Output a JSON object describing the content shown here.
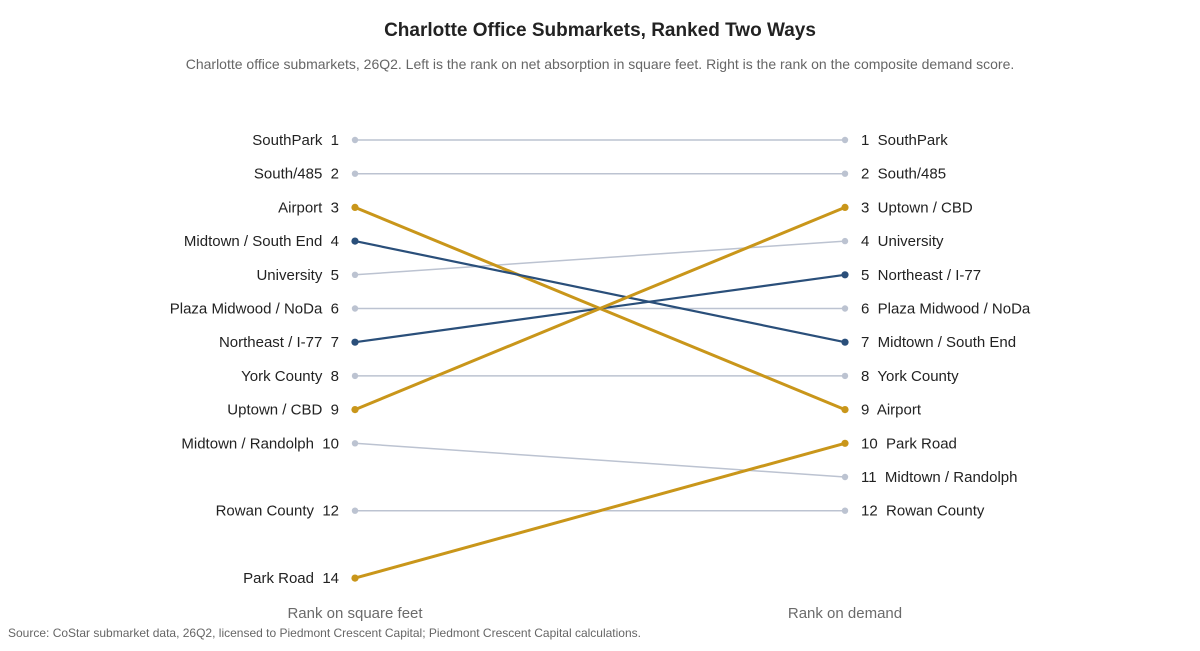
{
  "title": "Charlotte Office Submarkets, Ranked Two Ways",
  "subtitle": "Charlotte office submarkets, 26Q2. Left is the rank on net absorption in square feet. Right is the rank on the composite demand score.",
  "source": "Source: CoStar submarket data, 26Q2, licensed to Piedmont Crescent Capital; Piedmont Crescent Capital calculations.",
  "chart_data": {
    "type": "slope",
    "left_axis_label": "Rank on square feet",
    "right_axis_label": "Rank on demand",
    "rank_range": [
      1,
      14
    ],
    "colors": {
      "gold": "#c9961a",
      "navy": "#2a4f7a",
      "gray": "#bcc3d1"
    },
    "series": [
      {
        "name": "SouthPark",
        "left_rank": 1,
        "right_rank": 1,
        "highlight": "gray"
      },
      {
        "name": "South/485",
        "left_rank": 2,
        "right_rank": 2,
        "highlight": "gray"
      },
      {
        "name": "Airport",
        "left_rank": 3,
        "right_rank": 9,
        "highlight": "gold"
      },
      {
        "name": "Midtown / South End",
        "left_rank": 4,
        "right_rank": 7,
        "highlight": "navy"
      },
      {
        "name": "University",
        "left_rank": 5,
        "right_rank": 4,
        "highlight": "gray"
      },
      {
        "name": "Plaza Midwood / NoDa",
        "left_rank": 6,
        "right_rank": 6,
        "highlight": "gray"
      },
      {
        "name": "Northeast / I-77",
        "left_rank": 7,
        "right_rank": 5,
        "highlight": "navy"
      },
      {
        "name": "York County",
        "left_rank": 8,
        "right_rank": 8,
        "highlight": "gray"
      },
      {
        "name": "Uptown / CBD",
        "left_rank": 9,
        "right_rank": 3,
        "highlight": "gold"
      },
      {
        "name": "Midtown / Randolph",
        "left_rank": 10,
        "right_rank": 11,
        "highlight": "gray"
      },
      {
        "name": "Rowan County",
        "left_rank": 12,
        "right_rank": 12,
        "highlight": "gray"
      },
      {
        "name": "Park Road",
        "left_rank": 14,
        "right_rank": 10,
        "highlight": "gold"
      }
    ]
  }
}
